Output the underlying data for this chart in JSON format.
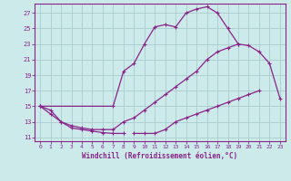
{
  "background_color": "#cceaea",
  "grid_color": "#aacccc",
  "line_color": "#882288",
  "title": "Windchill (Refroidissement éolien,°C)",
  "xlim": [
    -0.5,
    23.5
  ],
  "ylim": [
    10.5,
    28.2
  ],
  "yticks": [
    11,
    13,
    15,
    17,
    19,
    21,
    23,
    25,
    27
  ],
  "xticks": [
    0,
    1,
    2,
    3,
    4,
    5,
    6,
    7,
    8,
    9,
    10,
    11,
    12,
    13,
    14,
    15,
    16,
    17,
    18,
    19,
    20,
    21,
    22,
    23
  ],
  "lines": [
    {
      "segments": [
        {
          "x": [
            0,
            1,
            2,
            3,
            4,
            5,
            6,
            7,
            8
          ],
          "y": [
            15,
            14,
            13,
            12.2,
            12,
            11.8,
            11.6,
            11.5,
            11.5
          ]
        },
        {
          "x": [
            9,
            10,
            11,
            12,
            13,
            14,
            15,
            16,
            17,
            18,
            19,
            20,
            21,
            22,
            23
          ],
          "y": [
            11.5,
            11.5,
            11.5,
            12,
            13,
            13.5,
            14,
            14.5,
            15,
            15.5,
            16,
            16.5,
            17,
            null,
            null
          ]
        }
      ]
    },
    {
      "segments": [
        {
          "x": [
            0,
            1,
            2,
            3,
            4,
            5,
            6,
            7,
            8,
            9,
            10,
            11,
            12,
            13,
            14,
            15,
            16,
            17,
            18,
            19,
            20,
            21,
            22,
            23
          ],
          "y": [
            15,
            14.5,
            13,
            12.5,
            12.2,
            12,
            12,
            12,
            13,
            13.5,
            14.5,
            15.5,
            16.5,
            17.5,
            18.5,
            19.5,
            21,
            22,
            22.5,
            23,
            22.8,
            22,
            20.5,
            16
          ]
        }
      ]
    },
    {
      "segments": [
        {
          "x": [
            0,
            7,
            8,
            9,
            10,
            11,
            12,
            13,
            14,
            15,
            16,
            17,
            18,
            19
          ],
          "y": [
            15,
            15,
            19.5,
            20.5,
            23,
            25.2,
            25.5,
            25.2,
            27,
            27.5,
            27.8,
            27,
            25,
            23
          ]
        }
      ]
    }
  ]
}
